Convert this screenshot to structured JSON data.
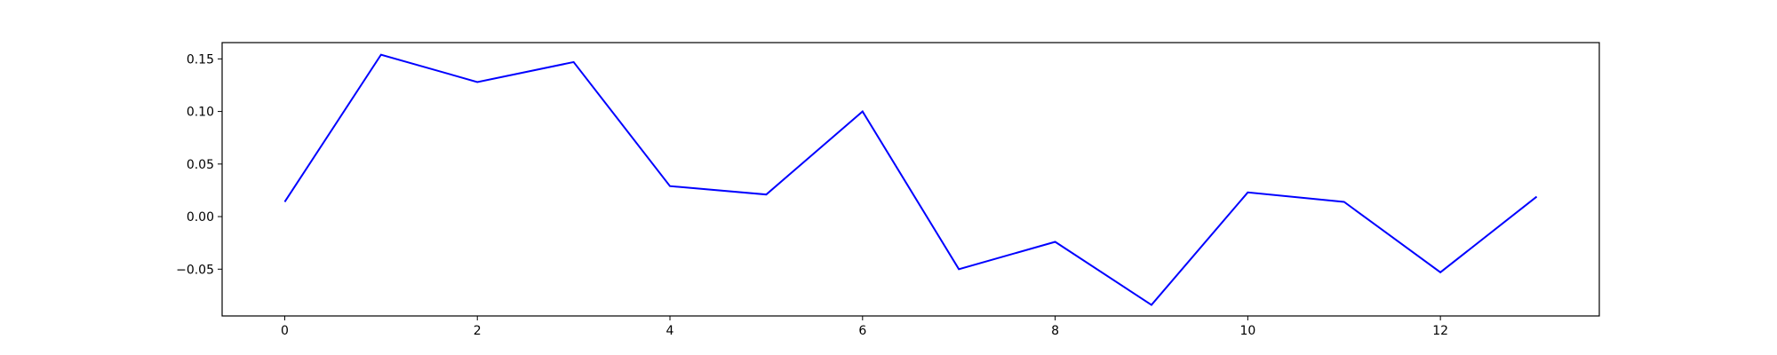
{
  "chart_data": {
    "type": "line",
    "title": "",
    "xlabel": "",
    "ylabel": "",
    "xlim": [
      -0.65,
      13.65
    ],
    "ylim": [
      -0.0945,
      0.1655
    ],
    "grid": false,
    "x_ticks": [
      0,
      2,
      4,
      6,
      8,
      10,
      12
    ],
    "x_tick_labels": [
      "0",
      "2",
      "4",
      "6",
      "8",
      "10",
      "12"
    ],
    "y_ticks": [
      0.15,
      0.1,
      0.05,
      0.0,
      -0.05
    ],
    "y_tick_labels": [
      "0.15",
      "0.10",
      "0.05",
      "0.00",
      "−0.05"
    ],
    "series": [
      {
        "color": "#0000ff",
        "x": [
          0,
          1,
          2,
          3,
          4,
          5,
          6,
          7,
          8,
          9,
          10,
          11,
          12,
          13
        ],
        "y": [
          0.014,
          0.154,
          0.128,
          0.147,
          0.029,
          0.021,
          0.1,
          -0.05,
          -0.024,
          -0.084,
          0.023,
          0.014,
          -0.053,
          0.019
        ]
      }
    ]
  }
}
